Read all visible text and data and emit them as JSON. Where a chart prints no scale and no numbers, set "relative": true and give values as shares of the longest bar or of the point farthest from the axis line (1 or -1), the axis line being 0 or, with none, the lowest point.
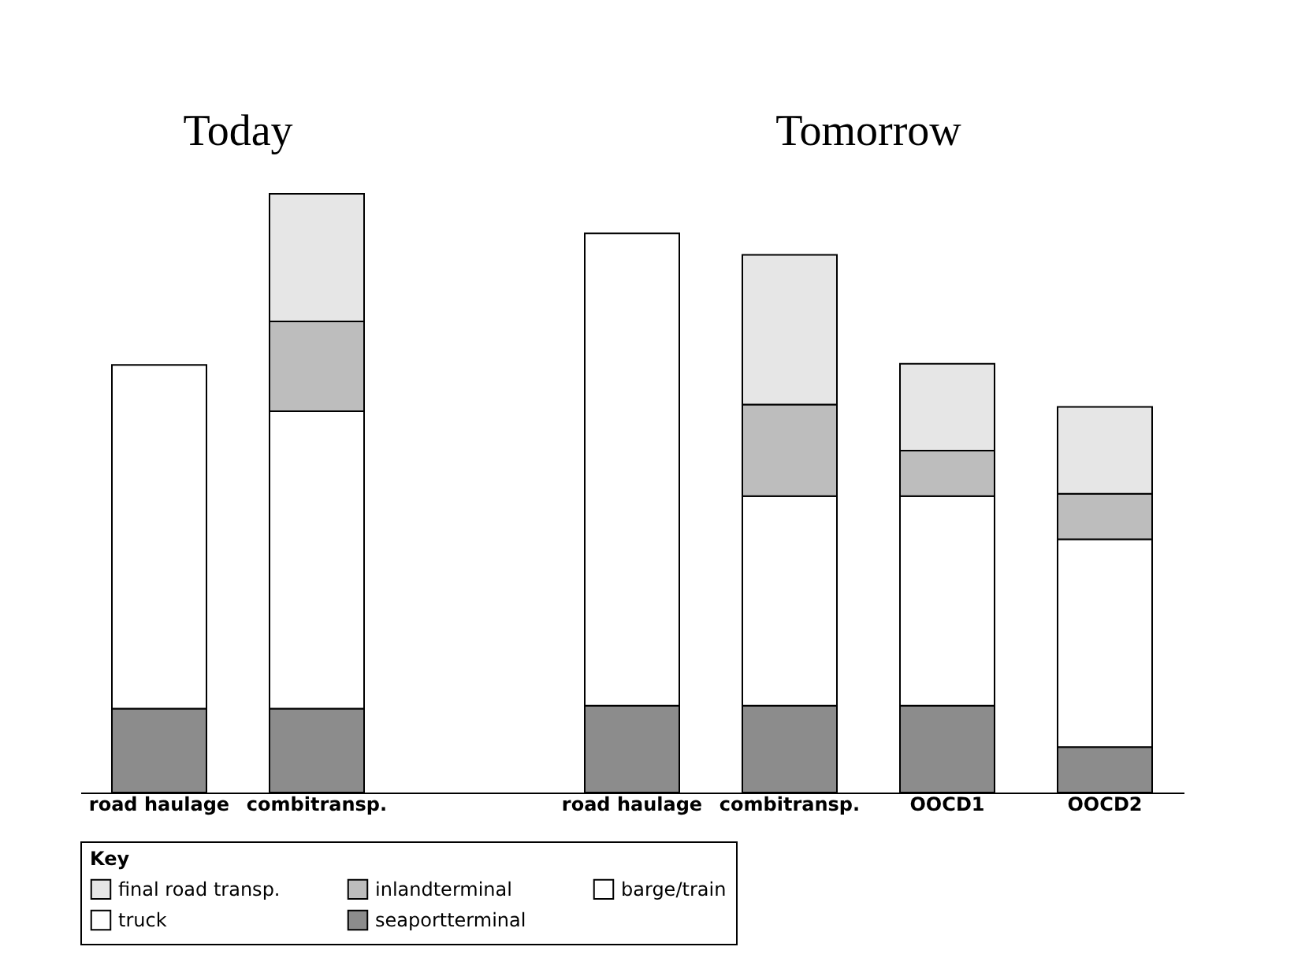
{
  "chart_data": {
    "type": "bar",
    "stacked": true,
    "relative": true,
    "categories": [
      "road haulage",
      "combitransp.",
      null,
      "road haulage",
      "combitransp.",
      "OOCD1",
      "OOCD2"
    ],
    "series": [
      {
        "name": "seaportterminal",
        "color": "#8c8c8c",
        "values": [
          0.14,
          0.14,
          null,
          0.145,
          0.145,
          0.145,
          0.076
        ]
      },
      {
        "name": "truck",
        "color": "#ffffff",
        "values": [
          0.574,
          null,
          null,
          0.789,
          null,
          null,
          null
        ]
      },
      {
        "name": "barge/train",
        "color": "#ffffff",
        "values": [
          null,
          0.497,
          null,
          null,
          0.35,
          0.35,
          0.347
        ]
      },
      {
        "name": "inlandterminal",
        "color": "#bdbdbd",
        "values": [
          null,
          0.15,
          null,
          null,
          0.153,
          0.076,
          0.076
        ]
      },
      {
        "name": "final road transp.",
        "color": "#e6e6e6",
        "values": [
          null,
          0.213,
          null,
          null,
          0.25,
          0.145,
          0.145
        ]
      }
    ],
    "legend": "bottom",
    "legend_title": "Key",
    "annotations": [
      "Today",
      "Tomorrow"
    ]
  }
}
